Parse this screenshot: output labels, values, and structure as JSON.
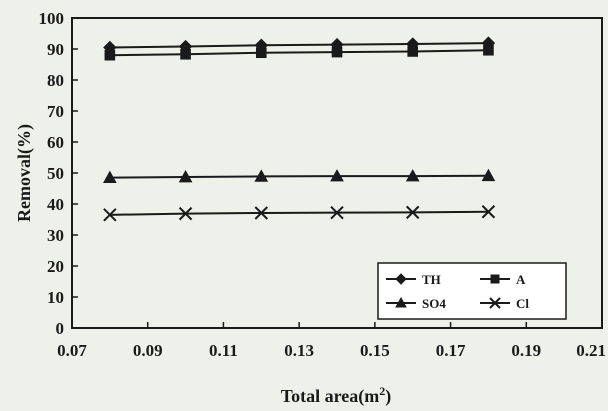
{
  "chart_data": {
    "type": "line",
    "xlabel": "Total area(m",
    "xlabel_sup": "2",
    "xlabel_tail": ")",
    "ylabel": "Removal(%)",
    "xlim": [
      0.07,
      0.21
    ],
    "ylim": [
      0,
      100
    ],
    "xticks": [
      "0.07",
      "0.09",
      "0.11",
      "0.13",
      "0.15",
      "0.17",
      "0.19",
      "0.21"
    ],
    "yticks": [
      "0",
      "10",
      "20",
      "30",
      "40",
      "50",
      "60",
      "70",
      "80",
      "90",
      "100"
    ],
    "grid": false,
    "legend_position": "bottom-right",
    "x": [
      0.08,
      0.1,
      0.12,
      0.14,
      0.16,
      0.18
    ],
    "series": [
      {
        "name": "TH",
        "marker": "diamond",
        "values": [
          90.5,
          90.8,
          91.2,
          91.4,
          91.6,
          91.9
        ]
      },
      {
        "name": "A",
        "marker": "square",
        "values": [
          88.0,
          88.3,
          88.8,
          89.0,
          89.2,
          89.6
        ]
      },
      {
        "name": "SO4",
        "marker": "triangle",
        "values": [
          48.5,
          48.7,
          48.9,
          49.0,
          49.0,
          49.1
        ]
      },
      {
        "name": "Cl",
        "marker": "x",
        "values": [
          36.5,
          36.9,
          37.1,
          37.2,
          37.3,
          37.5
        ]
      }
    ],
    "colors": {
      "line": "#1a1a1a",
      "background": "#eef0ea"
    }
  }
}
